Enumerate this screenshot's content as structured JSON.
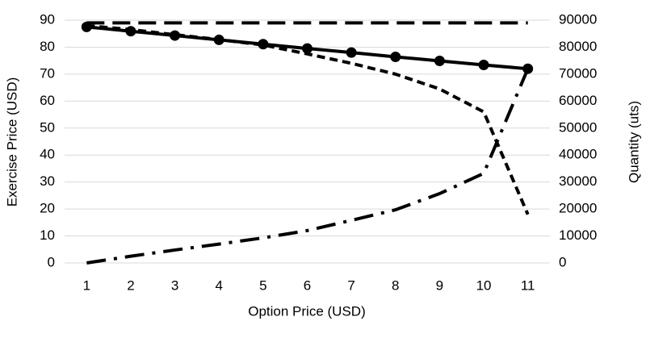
{
  "chart_data": {
    "type": "line",
    "x_label": "Option Price (USD)",
    "y_label": "Exercise Price (USD)",
    "y2_label": "Quantity (uts)",
    "categories": [
      "1",
      "2",
      "3",
      "4",
      "5",
      "6",
      "7",
      "8",
      "9",
      "10",
      "11"
    ],
    "ylim": [
      0,
      90
    ],
    "yticks": [
      0,
      10,
      20,
      30,
      40,
      50,
      60,
      70,
      80,
      90
    ],
    "y2lim": [
      0,
      90000
    ],
    "y2ticks": [
      0,
      10000,
      20000,
      30000,
      40000,
      50000,
      60000,
      70000,
      80000,
      90000
    ],
    "grid": true,
    "series": [
      {
        "color": "#000000",
        "dash": "solid",
        "marker": "circle",
        "values": [
          87.5,
          85.9,
          84.3,
          82.7,
          81.1,
          79.5,
          78.0,
          76.4,
          74.9,
          73.4,
          72.0
        ]
      },
      {
        "color": "#000000",
        "dash": "long",
        "marker": "none",
        "values": [
          89,
          89,
          89,
          89,
          89,
          89,
          89,
          89,
          89,
          89,
          89
        ]
      },
      {
        "color": "#000000",
        "dash": "short",
        "marker": "none",
        "values": [
          88,
          86.5,
          84.6,
          82.8,
          80.8,
          77.5,
          74,
          70,
          64.5,
          56,
          18
        ]
      },
      {
        "color": "#000000",
        "dash": "dashdot",
        "marker": "none",
        "axis": "y2",
        "values": [
          0,
          2500,
          4800,
          7000,
          9300,
          12000,
          15800,
          19700,
          25700,
          33200,
          72000
        ]
      }
    ]
  }
}
